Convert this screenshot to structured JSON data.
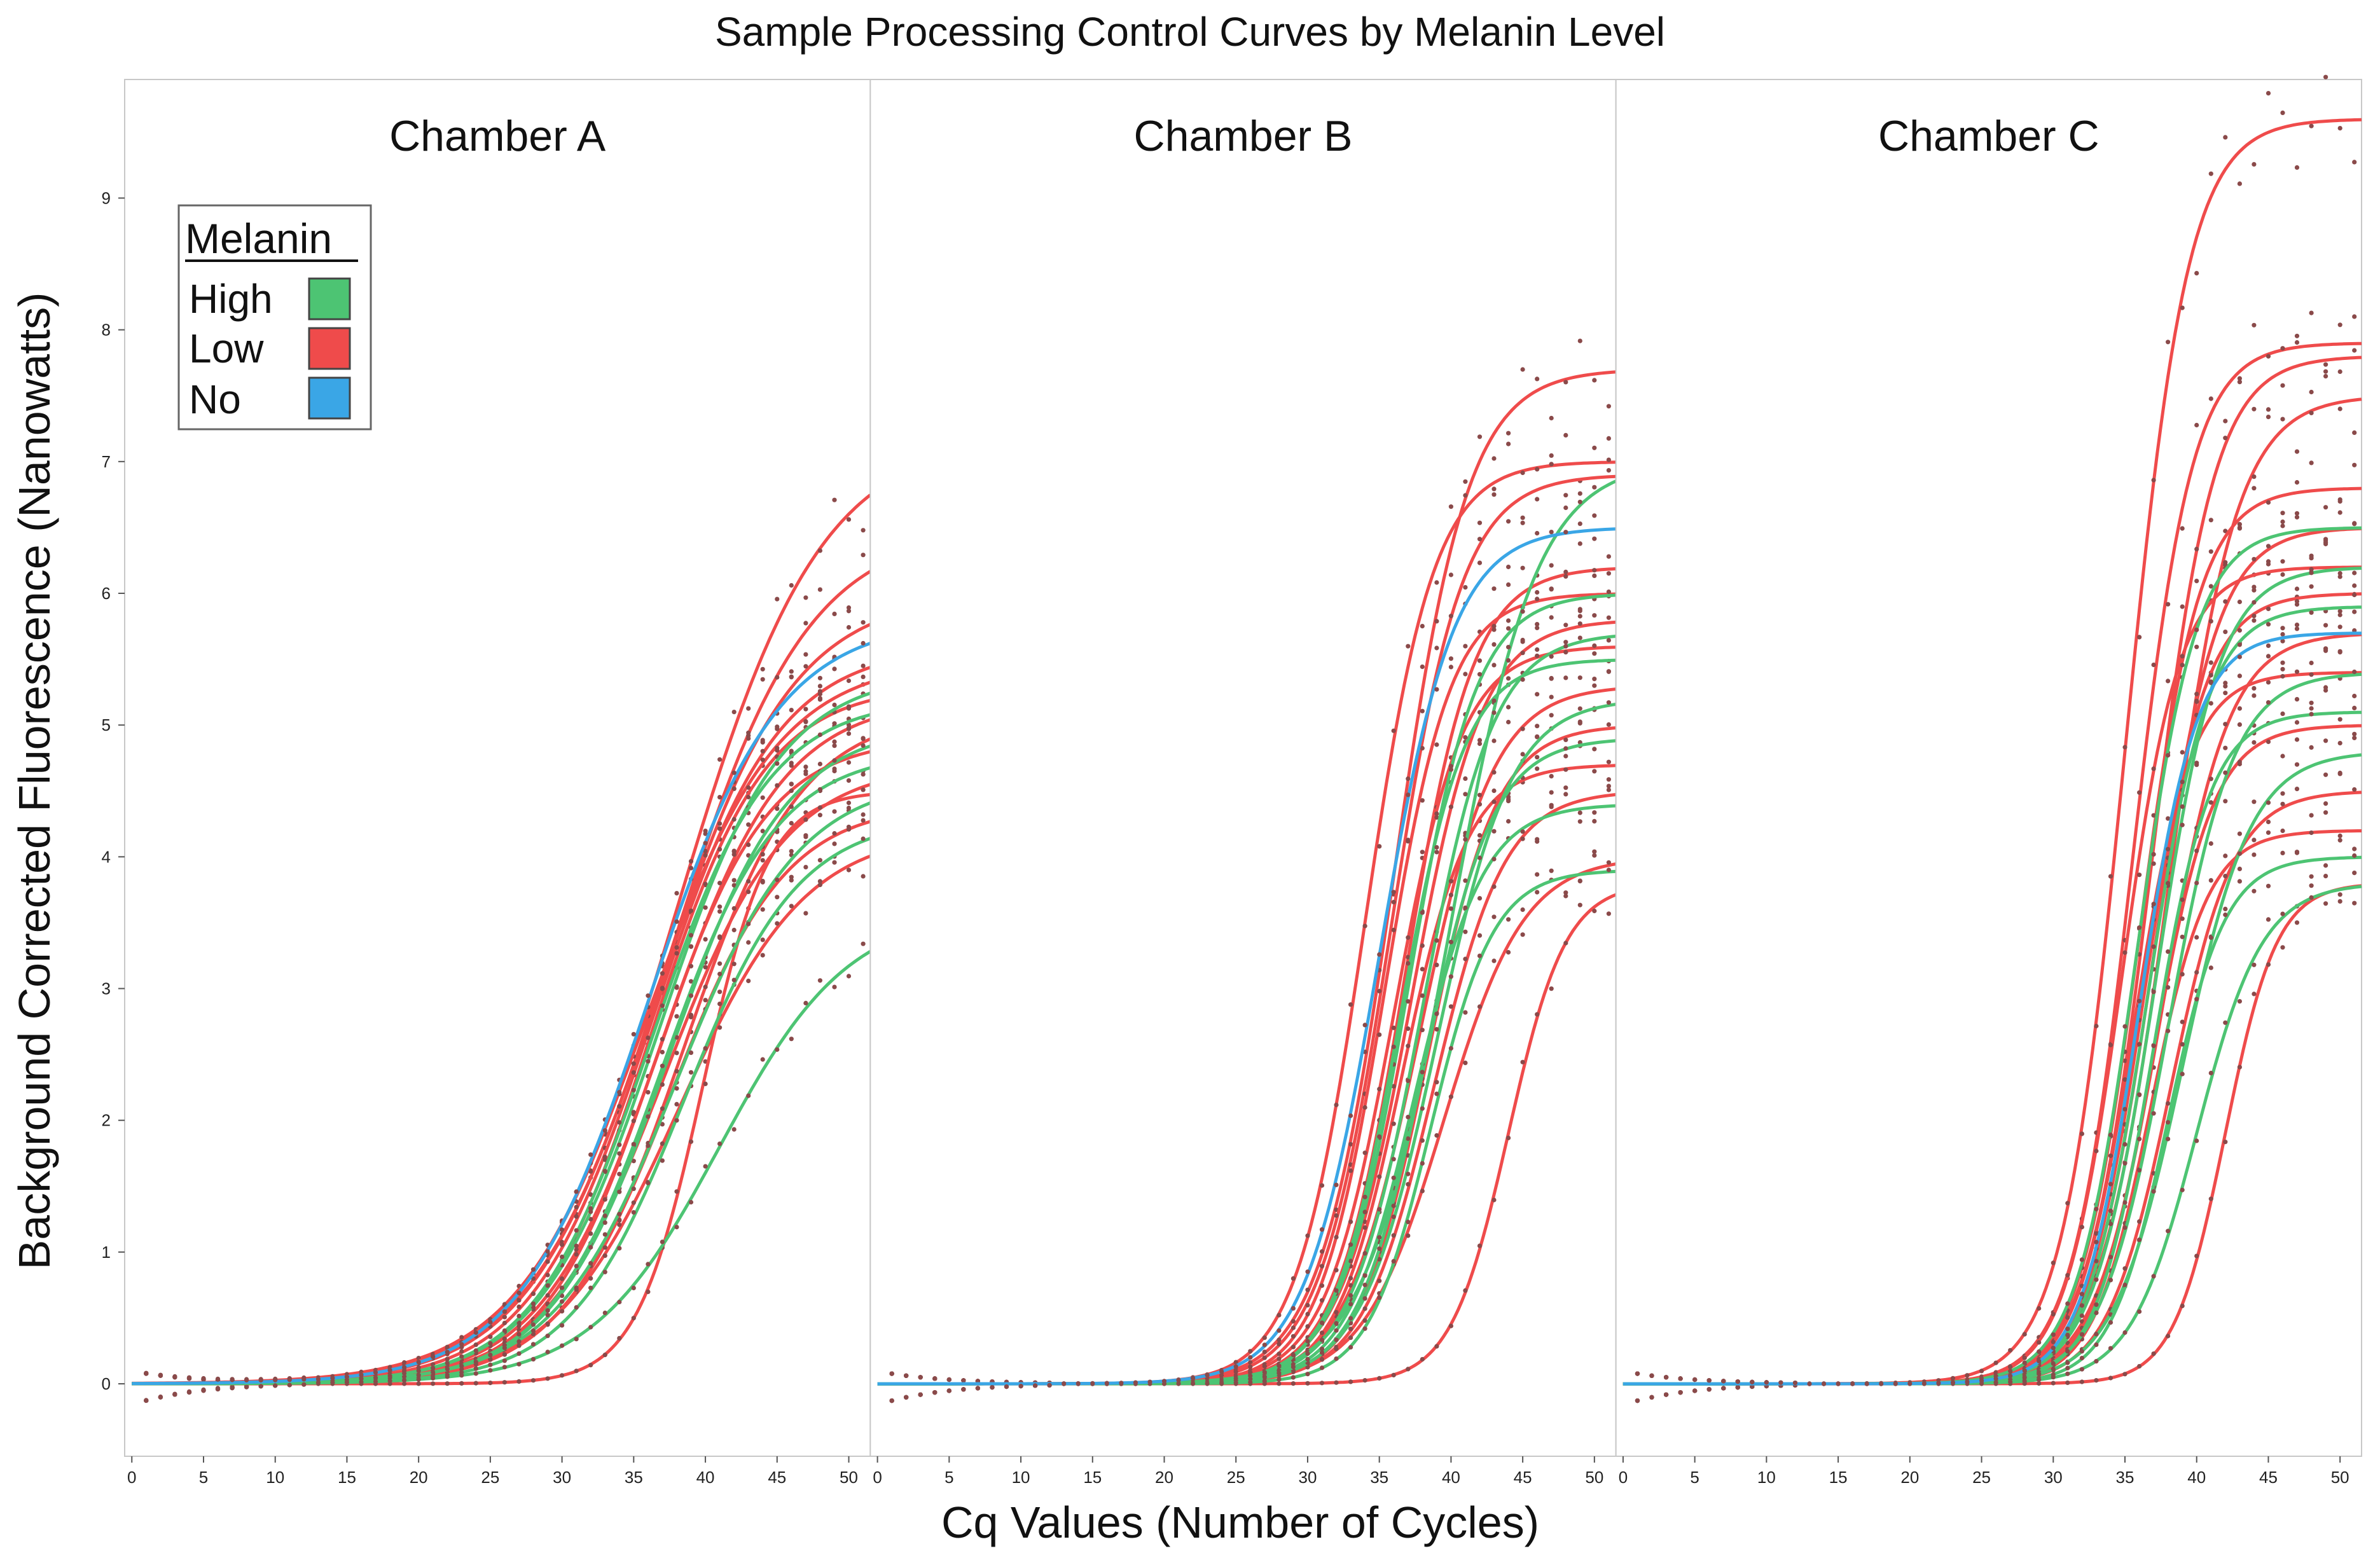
{
  "chart_data": {
    "type": "line",
    "title": "Sample Processing Control Curves by Melanin Level",
    "xlabel": "Cq Values (Number of Cycles)",
    "ylabel": "Background Corrected Fluorescence (Nanowatts)",
    "xlim": [
      -0.5,
      51.5
    ],
    "ylim": [
      -0.55,
      9.9
    ],
    "x_ticks": [
      0,
      5,
      10,
      15,
      20,
      25,
      30,
      35,
      40,
      45,
      50
    ],
    "y_ticks": [
      0,
      1,
      2,
      3,
      4,
      5,
      6,
      7,
      8,
      9
    ],
    "legend": {
      "title": "Melanin",
      "position": "top-left",
      "items": [
        {
          "label": "High",
          "color": "#4dc473"
        },
        {
          "label": "Low",
          "color": "#ef4b4b"
        },
        {
          "label": "No",
          "color": "#3aa6e6"
        }
      ]
    },
    "point_color": "#8a4a4a",
    "panels": [
      {
        "title": "Chamber A",
        "series": [
          {
            "group": "No",
            "plateau": 5.8,
            "midpoint": 36.0,
            "slope": 4.5
          },
          {
            "group": "Low",
            "plateau": 7.2,
            "midpoint": 38.0,
            "slope": 5.0
          },
          {
            "group": "Low",
            "plateau": 6.5,
            "midpoint": 37.5,
            "slope": 4.8
          },
          {
            "group": "Low",
            "plateau": 6.0,
            "midpoint": 36.8,
            "slope": 4.6
          },
          {
            "group": "Low",
            "plateau": 5.6,
            "midpoint": 36.4,
            "slope": 4.3
          },
          {
            "group": "Low",
            "plateau": 5.3,
            "midpoint": 36.2,
            "slope": 4.0
          },
          {
            "group": "Low",
            "plateau": 5.2,
            "midpoint": 37.0,
            "slope": 4.2
          },
          {
            "group": "Low",
            "plateau": 4.9,
            "midpoint": 36.5,
            "slope": 3.9
          },
          {
            "group": "Low",
            "plateau": 4.7,
            "midpoint": 37.2,
            "slope": 4.2
          },
          {
            "group": "Low",
            "plateau": 4.4,
            "midpoint": 37.6,
            "slope": 4.0
          },
          {
            "group": "Low",
            "plateau": 4.2,
            "midpoint": 38.2,
            "slope": 4.4
          },
          {
            "group": "Low",
            "plateau": 5.5,
            "midpoint": 35.8,
            "slope": 4.6
          },
          {
            "group": "Low",
            "plateau": 5.1,
            "midpoint": 38.5,
            "slope": 4.1
          },
          {
            "group": "Low",
            "plateau": 4.5,
            "midpoint": 39.8,
            "slope": 2.3
          },
          {
            "group": "High",
            "plateau": 5.4,
            "midpoint": 36.8,
            "slope": 4.2
          },
          {
            "group": "High",
            "plateau": 5.0,
            "midpoint": 37.5,
            "slope": 4.1
          },
          {
            "group": "High",
            "plateau": 4.8,
            "midpoint": 37.0,
            "slope": 4.0
          },
          {
            "group": "High",
            "plateau": 4.6,
            "midpoint": 38.0,
            "slope": 4.3
          },
          {
            "group": "High",
            "plateau": 4.3,
            "midpoint": 38.5,
            "slope": 4.0
          },
          {
            "group": "High",
            "plateau": 5.2,
            "midpoint": 36.2,
            "slope": 4.1
          },
          {
            "group": "High",
            "plateau": 3.6,
            "midpoint": 41.0,
            "slope": 4.5
          }
        ]
      },
      {
        "title": "Chamber B",
        "series": [
          {
            "group": "No",
            "plateau": 6.5,
            "midpoint": 35.0,
            "slope": 2.6
          },
          {
            "group": "Low",
            "plateau": 7.7,
            "midpoint": 36.0,
            "slope": 2.6
          },
          {
            "group": "Low",
            "plateau": 7.0,
            "midpoint": 34.0,
            "slope": 2.4
          },
          {
            "group": "Low",
            "plateau": 6.9,
            "midpoint": 35.8,
            "slope": 2.5
          },
          {
            "group": "Low",
            "plateau": 6.2,
            "midpoint": 36.8,
            "slope": 2.4
          },
          {
            "group": "Low",
            "plateau": 6.0,
            "midpoint": 35.4,
            "slope": 2.3
          },
          {
            "group": "Low",
            "plateau": 5.8,
            "midpoint": 37.2,
            "slope": 2.5
          },
          {
            "group": "Low",
            "plateau": 5.6,
            "midpoint": 36.0,
            "slope": 2.4
          },
          {
            "group": "Low",
            "plateau": 5.3,
            "midpoint": 37.8,
            "slope": 2.6
          },
          {
            "group": "Low",
            "plateau": 5.0,
            "midpoint": 38.4,
            "slope": 2.4
          },
          {
            "group": "Low",
            "plateau": 4.7,
            "midpoint": 36.6,
            "slope": 2.3
          },
          {
            "group": "Low",
            "plateau": 4.5,
            "midpoint": 38.8,
            "slope": 2.5
          },
          {
            "group": "Low",
            "plateau": 4.0,
            "midpoint": 39.5,
            "slope": 2.8
          },
          {
            "group": "Low",
            "plateau": 3.8,
            "midpoint": 44.0,
            "slope": 2.0
          },
          {
            "group": "High",
            "plateau": 7.0,
            "midpoint": 40.0,
            "slope": 3.0
          },
          {
            "group": "High",
            "plateau": 6.0,
            "midpoint": 37.0,
            "slope": 2.4
          },
          {
            "group": "High",
            "plateau": 5.7,
            "midpoint": 38.0,
            "slope": 2.5
          },
          {
            "group": "High",
            "plateau": 5.5,
            "midpoint": 36.4,
            "slope": 2.3
          },
          {
            "group": "High",
            "plateau": 5.2,
            "midpoint": 39.0,
            "slope": 2.6
          },
          {
            "group": "High",
            "plateau": 4.9,
            "midpoint": 38.2,
            "slope": 2.4
          },
          {
            "group": "High",
            "plateau": 4.4,
            "midpoint": 37.5,
            "slope": 2.4
          },
          {
            "group": "High",
            "plateau": 3.9,
            "midpoint": 38.6,
            "slope": 2.2
          }
        ]
      },
      {
        "title": "Chamber C",
        "series": [
          {
            "group": "No",
            "plateau": 5.7,
            "midpoint": 36.0,
            "slope": 2.0
          },
          {
            "group": "Low",
            "plateau": 9.6,
            "midpoint": 35.0,
            "slope": 2.2
          },
          {
            "group": "Low",
            "plateau": 7.9,
            "midpoint": 35.5,
            "slope": 2.1
          },
          {
            "group": "Low",
            "plateau": 7.8,
            "midpoint": 36.8,
            "slope": 2.2
          },
          {
            "group": "Low",
            "plateau": 7.5,
            "midpoint": 38.0,
            "slope": 2.4
          },
          {
            "group": "Low",
            "plateau": 6.8,
            "midpoint": 36.0,
            "slope": 2.1
          },
          {
            "group": "Low",
            "plateau": 6.5,
            "midpoint": 37.0,
            "slope": 2.2
          },
          {
            "group": "Low",
            "plateau": 6.2,
            "midpoint": 34.8,
            "slope": 2.0
          },
          {
            "group": "Low",
            "plateau": 6.0,
            "midpoint": 36.4,
            "slope": 2.1
          },
          {
            "group": "Low",
            "plateau": 5.7,
            "midpoint": 37.6,
            "slope": 2.3
          },
          {
            "group": "Low",
            "plateau": 5.4,
            "midpoint": 35.6,
            "slope": 2.0
          },
          {
            "group": "Low",
            "plateau": 5.0,
            "midpoint": 37.0,
            "slope": 2.1
          },
          {
            "group": "Low",
            "plateau": 4.5,
            "midpoint": 38.2,
            "slope": 2.2
          },
          {
            "group": "Low",
            "plateau": 4.2,
            "midpoint": 36.8,
            "slope": 2.0
          },
          {
            "group": "Low",
            "plateau": 3.8,
            "midpoint": 42.0,
            "slope": 1.8
          },
          {
            "group": "High",
            "plateau": 6.5,
            "midpoint": 35.8,
            "slope": 2.1
          },
          {
            "group": "High",
            "plateau": 6.2,
            "midpoint": 37.2,
            "slope": 2.2
          },
          {
            "group": "High",
            "plateau": 5.9,
            "midpoint": 36.6,
            "slope": 2.1
          },
          {
            "group": "High",
            "plateau": 5.4,
            "midpoint": 38.0,
            "slope": 2.3
          },
          {
            "group": "High",
            "plateau": 5.1,
            "midpoint": 37.0,
            "slope": 2.0
          },
          {
            "group": "High",
            "plateau": 4.8,
            "midpoint": 39.0,
            "slope": 2.4
          },
          {
            "group": "High",
            "plateau": 4.0,
            "midpoint": 38.0,
            "slope": 2.0
          },
          {
            "group": "High",
            "plateau": 3.8,
            "midpoint": 40.0,
            "slope": 2.3
          }
        ]
      }
    ]
  }
}
